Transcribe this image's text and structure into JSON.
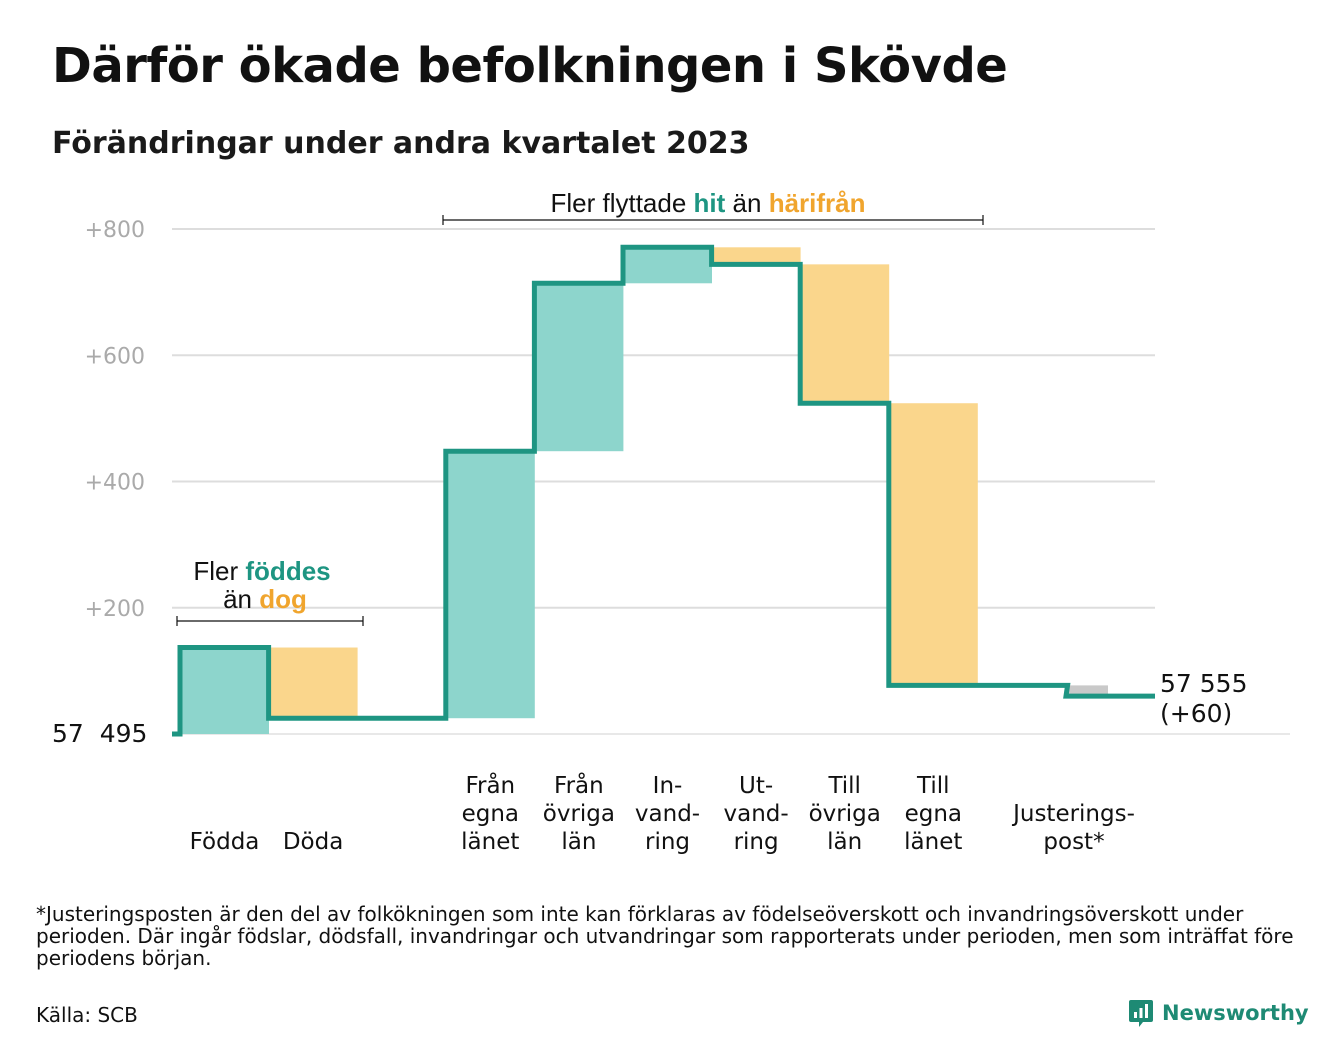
{
  "title": "Därför ökade befolkningen i Skövde",
  "subtitle": "Förändringar under andra kvartalet 2023",
  "chart_data": {
    "type": "bar",
    "variant": "waterfall",
    "base_label": "57  495",
    "base_value": 57495,
    "y_ticks": [
      "+200",
      "+400",
      "+600",
      "+800"
    ],
    "y_tick_values": [
      200,
      400,
      600,
      800
    ],
    "ylim": [
      0,
      800
    ],
    "grid": true,
    "categories": [
      {
        "label": "Födda",
        "start": 0,
        "end": 137,
        "kind": "increase"
      },
      {
        "label": "Döda",
        "start": 137,
        "end": 25,
        "kind": "decrease"
      },
      {
        "label": "Från egna länet",
        "start": 25,
        "end": 448,
        "kind": "increase"
      },
      {
        "label": "Från övriga län",
        "start": 448,
        "end": 714,
        "kind": "increase"
      },
      {
        "label": "In-vand-ring",
        "start": 714,
        "end": 771,
        "kind": "increase"
      },
      {
        "label": "Ut-vand-ring",
        "start": 771,
        "end": 744,
        "kind": "decrease"
      },
      {
        "label": "Till övriga län",
        "start": 744,
        "end": 524,
        "kind": "decrease"
      },
      {
        "label": "Till egna länet",
        "start": 524,
        "end": 77,
        "kind": "decrease"
      },
      {
        "label": "Justerings-post*",
        "start": 77,
        "end": 60,
        "kind": "adjustment"
      }
    ],
    "category_label_lines": [
      [
        "Födda"
      ],
      [
        "Döda"
      ],
      [
        "Från",
        "egna",
        "länet"
      ],
      [
        "Från",
        "övriga",
        "län"
      ],
      [
        "In-",
        "vand-",
        "ring"
      ],
      [
        "Ut-",
        "vand-",
        "ring"
      ],
      [
        "Till",
        "övriga",
        "län"
      ],
      [
        "Till",
        "egna",
        "länet"
      ],
      [
        "Justerings-",
        "post*"
      ]
    ],
    "end_label": "57 555",
    "end_change": "(+60)",
    "annotations": {
      "births": {
        "pre": "Fler",
        "hl1": "föddes",
        "mid": "än",
        "hl2": "dog"
      },
      "migration": {
        "pre": "Fler flyttade",
        "hl1": "hit",
        "mid": "än",
        "hl2": "härifrån"
      }
    },
    "colors": {
      "increase": "#8dd5cc",
      "decrease": "#fad68c",
      "adjustment": "#c9c9c9",
      "line": "#1e9582",
      "grid": "#dddddd",
      "axis_text": "#aaaaaa",
      "highlight_in": "#1e9582",
      "highlight_out": "#f0a52e"
    }
  },
  "footnote": "*Justeringsposten är den del av folkökningen som inte kan förklaras av födelseöverskott och invandringsöverskott under perioden. Där ingår födslar, dödsfall, invandringar och utvandringar som rapporterats under perioden, men som inträffat före periodens början.",
  "source": "Källa: SCB",
  "brand": "Newsworthy"
}
